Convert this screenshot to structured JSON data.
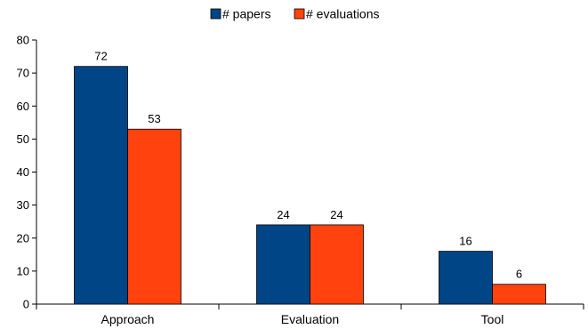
{
  "chart_data": {
    "type": "bar",
    "categories": [
      "Approach",
      "Evaluation",
      "Tool"
    ],
    "series": [
      {
        "name": "# papers",
        "values": [
          72,
          24,
          16
        ],
        "color": "#004586"
      },
      {
        "name": "# evaluations",
        "values": [
          53,
          24,
          6
        ],
        "color": "#FF420E"
      }
    ],
    "ylim": [
      0,
      80
    ],
    "yticks": [
      0,
      10,
      20,
      30,
      40,
      50,
      60,
      70,
      80
    ],
    "grid": false,
    "legend_position": "top-center",
    "data_labels": true
  }
}
